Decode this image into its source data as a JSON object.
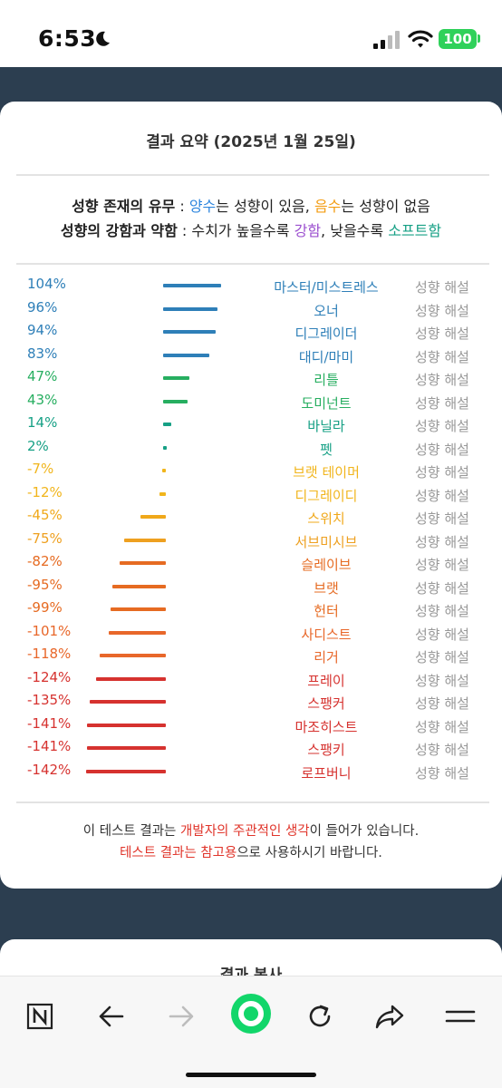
{
  "status": {
    "time": "6:53",
    "battery": "100"
  },
  "card": {
    "title": "결과 요약 (2025년 1월 25일)",
    "legend1": {
      "label": "성향 존재의 유무",
      "sep": " : ",
      "positive": "양수",
      "t1": "는 성향이 있음, ",
      "negative": "음수",
      "t2": "는 성향이 없음"
    },
    "legend2": {
      "label": "성향의 강함과 약함",
      "sep": " : ",
      "t1": "수치가 높을수록 ",
      "strong": "강함",
      "t2": ", 낮을수록 ",
      "soft": "소프트함"
    },
    "rows": [
      {
        "pct": "104%",
        "value": 104,
        "type": "마스터/미스트레스",
        "link": "성향 해설",
        "color": "#2e7fb8"
      },
      {
        "pct": "96%",
        "value": 96,
        "type": "오너",
        "link": "성향 해설",
        "color": "#2e7fb8"
      },
      {
        "pct": "94%",
        "value": 94,
        "type": "디그레이더",
        "link": "성향 해설",
        "color": "#2e7fb8"
      },
      {
        "pct": "83%",
        "value": 83,
        "type": "대디/마미",
        "link": "성향 해설",
        "color": "#2e7fb8"
      },
      {
        "pct": "47%",
        "value": 47,
        "type": "리틀",
        "link": "성향 해설",
        "color": "#27ae60"
      },
      {
        "pct": "43%",
        "value": 43,
        "type": "도미넌트",
        "link": "성향 해설",
        "color": "#27ae60"
      },
      {
        "pct": "14%",
        "value": 14,
        "type": "바닐라",
        "link": "성향 해설",
        "color": "#16a085"
      },
      {
        "pct": "2%",
        "value": 2,
        "type": "펫",
        "link": "성향 해설",
        "color": "#16a085"
      },
      {
        "pct": "-7%",
        "value": -7,
        "type": "브랫 테이머",
        "link": "성향 해설",
        "color": "#f1b51c"
      },
      {
        "pct": "-12%",
        "value": -12,
        "type": "디그레이디",
        "link": "성향 해설",
        "color": "#f1b51c"
      },
      {
        "pct": "-45%",
        "value": -45,
        "type": "스위치",
        "link": "성향 해설",
        "color": "#f0a81a"
      },
      {
        "pct": "-75%",
        "value": -75,
        "type": "서브미시브",
        "link": "성향 해설",
        "color": "#eea020"
      },
      {
        "pct": "-82%",
        "value": -82,
        "type": "슬레이브",
        "link": "성향 해설",
        "color": "#e66b22"
      },
      {
        "pct": "-95%",
        "value": -95,
        "type": "브랫",
        "link": "성향 해설",
        "color": "#e66b22"
      },
      {
        "pct": "-99%",
        "value": -99,
        "type": "헌터",
        "link": "성향 해설",
        "color": "#e66b22"
      },
      {
        "pct": "-101%",
        "value": -101,
        "type": "사디스트",
        "link": "성향 해설",
        "color": "#e8672a"
      },
      {
        "pct": "-118%",
        "value": -118,
        "type": "리거",
        "link": "성향 해설",
        "color": "#e8672a"
      },
      {
        "pct": "-124%",
        "value": -124,
        "type": "프레이",
        "link": "성향 해설",
        "color": "#d6322f"
      },
      {
        "pct": "-135%",
        "value": -135,
        "type": "스팽커",
        "link": "성향 해설",
        "color": "#d6322f"
      },
      {
        "pct": "-141%",
        "value": -141,
        "type": "마조히스트",
        "link": "성향 해설",
        "color": "#d6322f"
      },
      {
        "pct": "-141%",
        "value": -141,
        "type": "스팽키",
        "link": "성향 해설",
        "color": "#d6322f"
      },
      {
        "pct": "-142%",
        "value": -142,
        "type": "로프버니",
        "link": "성향 해설",
        "color": "#d6322f"
      }
    ],
    "note1": {
      "t1": "이 테스트 결과는 ",
      "highlight": "개발자의 주관적인 생각",
      "t2": "이 들어가 있습니다."
    },
    "note2": {
      "highlight": "테스트 결과는 참고용",
      "t1": "으로 사용하시기 바랍니다."
    }
  },
  "card2": {
    "title": "결과 복사"
  },
  "toolbar": {
    "items": [
      {
        "icon": "n-logo-icon"
      },
      {
        "icon": "back-arrow-icon"
      },
      {
        "icon": "forward-arrow-icon"
      },
      {
        "icon": "home-circle-icon"
      },
      {
        "icon": "reload-icon"
      },
      {
        "icon": "share-icon"
      },
      {
        "icon": "menu-icon"
      }
    ]
  }
}
